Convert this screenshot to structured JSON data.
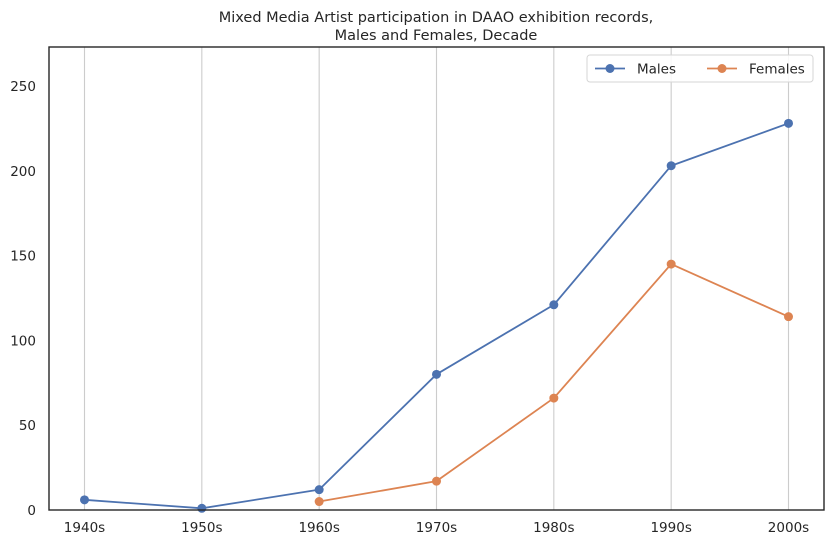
{
  "chart_data": {
    "type": "line",
    "title": "Mixed Media Artist participation in DAAO exhibition records,",
    "subtitle": "Males and Females, Decade",
    "xlabel": "",
    "ylabel": "",
    "categories": [
      "1940s",
      "1950s",
      "1960s",
      "1970s",
      "1980s",
      "1990s",
      "2000s"
    ],
    "series": [
      {
        "name": "Males",
        "color": "#4c72b0",
        "values": [
          6,
          1,
          12,
          80,
          121,
          203,
          228
        ]
      },
      {
        "name": "Females",
        "color": "#dd8452",
        "values": [
          null,
          null,
          5,
          17,
          66,
          145,
          114
        ]
      }
    ],
    "ylim": [
      0,
      273
    ],
    "yticks": [
      0,
      50,
      100,
      150,
      200,
      250
    ],
    "grid": "vertical",
    "legend": "top-right",
    "legend_columns": 2
  }
}
